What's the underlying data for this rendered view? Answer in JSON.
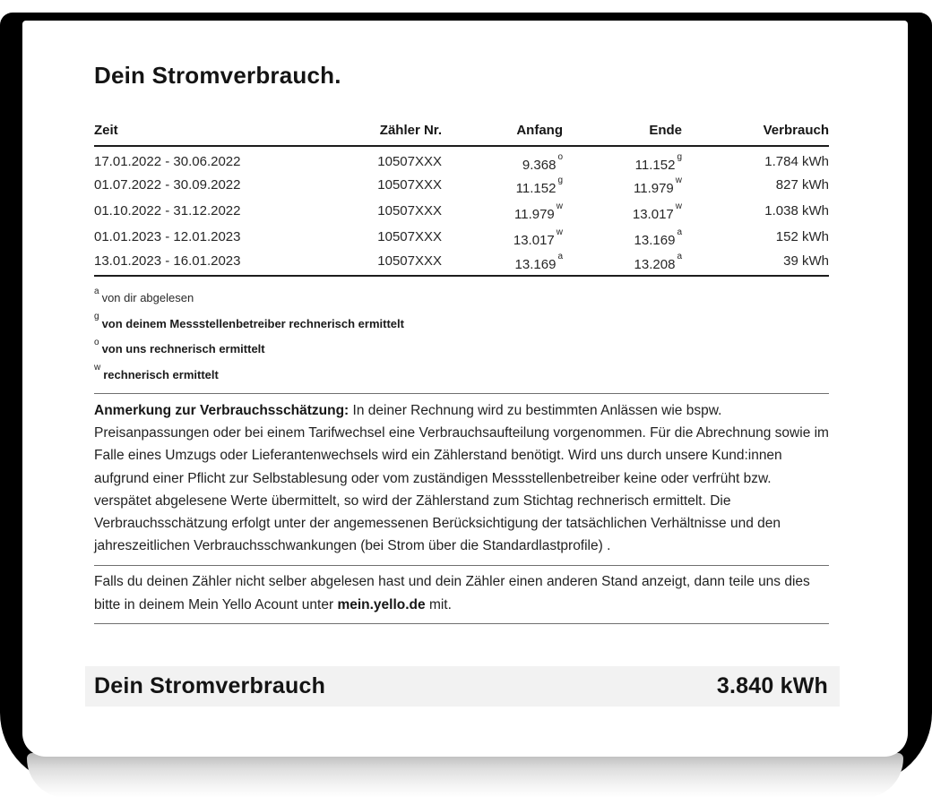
{
  "page": {
    "title": "Dein Stromverbrauch."
  },
  "colors": {
    "text": "#1d1d1d",
    "backdrop": "#000000",
    "summary_bg": "#f2f2f2",
    "rule": "#6f6f6f"
  },
  "table": {
    "headers": {
      "zeit": "Zeit",
      "zaehler": "Zähler Nr.",
      "anfang": "Anfang",
      "ende": "Ende",
      "verbrauch": "Verbrauch"
    },
    "rows": [
      {
        "zeit": "17.01.2022 - 30.06.2022",
        "zaehler": "10507XXX",
        "anfang": "9.368",
        "anfang_sup": "o",
        "ende": "11.152",
        "ende_sup": "g",
        "verbrauch": "1.784 kWh"
      },
      {
        "zeit": "01.07.2022 - 30.09.2022",
        "zaehler": "10507XXX",
        "anfang": "11.152",
        "anfang_sup": "g",
        "ende": "11.979",
        "ende_sup": "w",
        "verbrauch": "827 kWh"
      },
      {
        "zeit": "01.10.2022 - 31.12.2022",
        "zaehler": "10507XXX",
        "anfang": "11.979",
        "anfang_sup": "w",
        "ende": "13.017",
        "ende_sup": "w",
        "verbrauch": "1.038 kWh"
      },
      {
        "zeit": "01.01.2023 - 12.01.2023",
        "zaehler": "10507XXX",
        "anfang": "13.017",
        "anfang_sup": "w",
        "ende": "13.169",
        "ende_sup": "a",
        "verbrauch": "152 kWh"
      },
      {
        "zeit": "13.01.2023 - 16.01.2023",
        "zaehler": "10507XXX",
        "anfang": "13.169",
        "anfang_sup": "a",
        "ende": "13.208",
        "ende_sup": "a",
        "verbrauch": "39 kWh"
      }
    ]
  },
  "footnotes": [
    {
      "sup": "a",
      "text": "von dir abgelesen"
    },
    {
      "sup": "g",
      "text": "von deinem Messstellenbetreiber rechnerisch ermittelt"
    },
    {
      "sup": "o",
      "text": "von uns rechnerisch ermittelt"
    },
    {
      "sup": "w",
      "text": "rechnerisch ermittelt"
    }
  ],
  "note": {
    "lead": "Anmerkung zur Verbrauchsschätzung:",
    "body": " In deiner Rechnung wird zu bestimmten Anlässen wie bspw. Preisanpassungen oder bei einem Tarifwechsel eine Verbrauchsaufteilung vorgenommen. Für die Abrechnung sowie im Falle eines Umzugs oder Lieferantenwechsels wird ein Zählerstand benötigt. Wird uns durch unsere Kund:innen aufgrund einer Pflicht zur Selbstablesung oder vom zuständigen Messstellenbetreiber keine oder verfrüht bzw. verspätet abgelesene Werte übermittelt, so wird der Zählerstand zum Stichtag rechnerisch ermittelt. Die Verbrauchsschätzung erfolgt unter der angemessenen Berücksichtigung der tatsächlichen Verhältnisse und den jahreszeitlichen Verbrauchsschwankungen (bei Strom über die Standardlastprofile) ."
  },
  "hint": {
    "before": "Falls du deinen Zähler nicht selber abgelesen hast und dein Zähler einen anderen Stand anzeigt, dann teile uns dies bitte in deinem Mein Yello Acount unter ",
    "link": "mein.yello.de",
    "after": " mit."
  },
  "summary": {
    "label": "Dein Stromverbrauch",
    "value": "3.840 kWh"
  }
}
